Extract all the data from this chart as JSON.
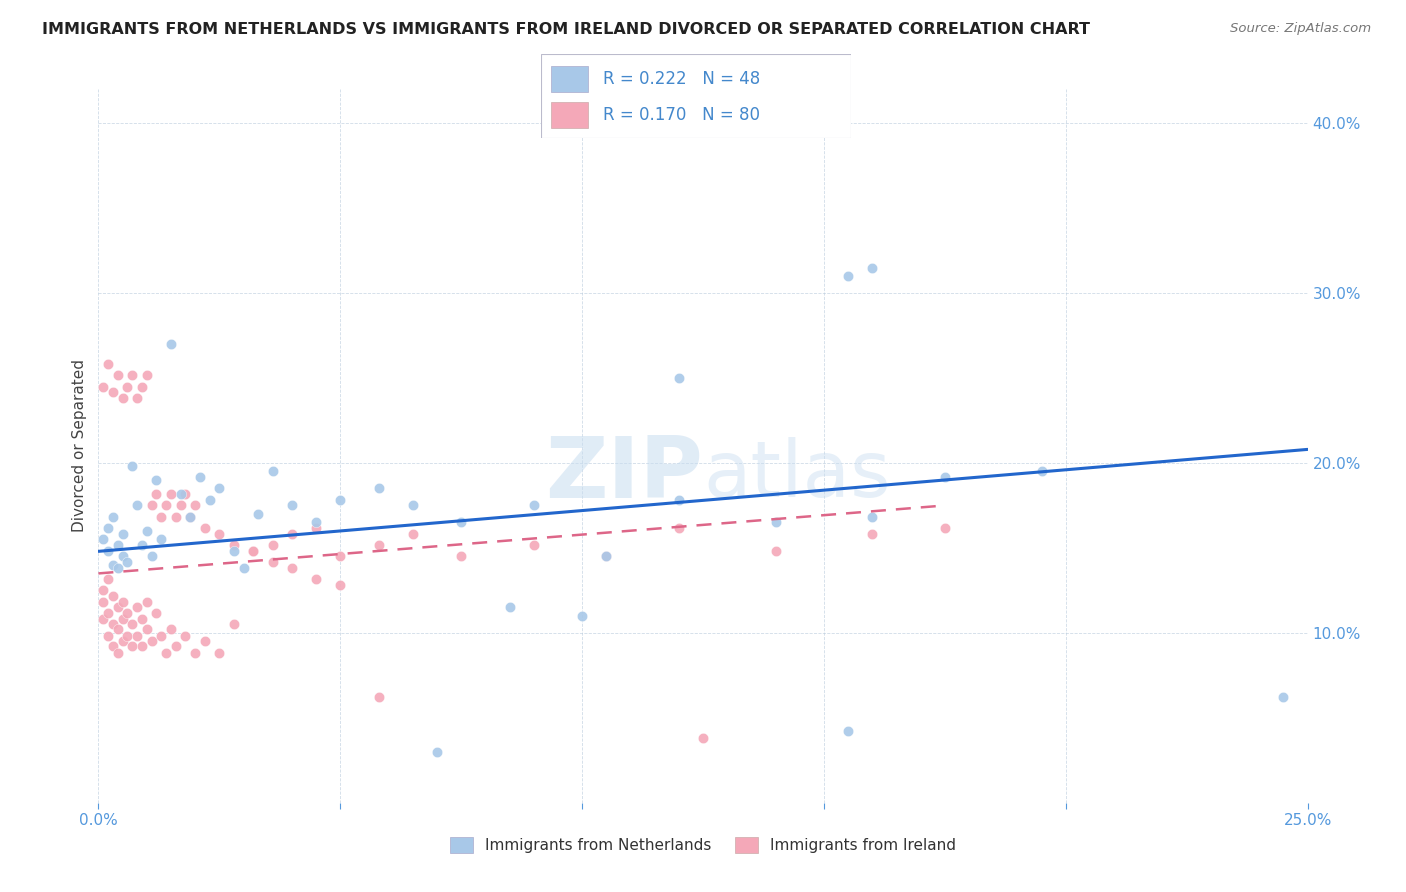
{
  "title": "IMMIGRANTS FROM NETHERLANDS VS IMMIGRANTS FROM IRELAND DIVORCED OR SEPARATED CORRELATION CHART",
  "source": "Source: ZipAtlas.com",
  "ylabel": "Divorced or Separated",
  "legend_label1": "Immigrants from Netherlands",
  "legend_label2": "Immigrants from Ireland",
  "legend_r1": "R = 0.222",
  "legend_n1": "N = 48",
  "legend_r2": "R = 0.170",
  "legend_n2": "N = 80",
  "color_blue": "#a8c8e8",
  "color_pink": "#f4a8b8",
  "line_color_blue": "#2266cc",
  "line_color_pink": "#dd6688",
  "xlim": [
    0.0,
    0.25
  ],
  "ylim": [
    0.0,
    0.42
  ],
  "nl_x": [
    0.001,
    0.002,
    0.002,
    0.003,
    0.003,
    0.004,
    0.004,
    0.005,
    0.005,
    0.006,
    0.007,
    0.008,
    0.009,
    0.01,
    0.011,
    0.012,
    0.013,
    0.015,
    0.017,
    0.019,
    0.021,
    0.023,
    0.025,
    0.028,
    0.03,
    0.033,
    0.036,
    0.04,
    0.045,
    0.05,
    0.058,
    0.065,
    0.075,
    0.09,
    0.105,
    0.12,
    0.14,
    0.16,
    0.175,
    0.195,
    0.155,
    0.16,
    0.12,
    0.245,
    0.155,
    0.1,
    0.085,
    0.07
  ],
  "nl_y": [
    0.155,
    0.148,
    0.162,
    0.14,
    0.168,
    0.138,
    0.152,
    0.145,
    0.158,
    0.142,
    0.198,
    0.175,
    0.152,
    0.16,
    0.145,
    0.19,
    0.155,
    0.27,
    0.182,
    0.168,
    0.192,
    0.178,
    0.185,
    0.148,
    0.138,
    0.17,
    0.195,
    0.175,
    0.165,
    0.178,
    0.185,
    0.175,
    0.165,
    0.175,
    0.145,
    0.178,
    0.165,
    0.168,
    0.192,
    0.195,
    0.31,
    0.315,
    0.25,
    0.062,
    0.042,
    0.11,
    0.115,
    0.03
  ],
  "ir_x": [
    0.001,
    0.001,
    0.001,
    0.002,
    0.002,
    0.002,
    0.003,
    0.003,
    0.003,
    0.004,
    0.004,
    0.004,
    0.005,
    0.005,
    0.005,
    0.006,
    0.006,
    0.007,
    0.007,
    0.008,
    0.008,
    0.009,
    0.009,
    0.01,
    0.01,
    0.011,
    0.012,
    0.013,
    0.014,
    0.015,
    0.016,
    0.018,
    0.02,
    0.022,
    0.025,
    0.028,
    0.032,
    0.036,
    0.04,
    0.045,
    0.05,
    0.058,
    0.065,
    0.075,
    0.09,
    0.105,
    0.12,
    0.14,
    0.16,
    0.175,
    0.001,
    0.002,
    0.003,
    0.004,
    0.005,
    0.006,
    0.007,
    0.008,
    0.009,
    0.01,
    0.011,
    0.012,
    0.013,
    0.014,
    0.015,
    0.016,
    0.017,
    0.018,
    0.019,
    0.02,
    0.022,
    0.025,
    0.028,
    0.032,
    0.036,
    0.04,
    0.045,
    0.05,
    0.058,
    0.125
  ],
  "ir_y": [
    0.125,
    0.118,
    0.108,
    0.132,
    0.112,
    0.098,
    0.122,
    0.105,
    0.092,
    0.115,
    0.102,
    0.088,
    0.118,
    0.108,
    0.095,
    0.112,
    0.098,
    0.105,
    0.092,
    0.115,
    0.098,
    0.108,
    0.092,
    0.118,
    0.102,
    0.095,
    0.112,
    0.098,
    0.088,
    0.102,
    0.092,
    0.098,
    0.088,
    0.095,
    0.088,
    0.105,
    0.148,
    0.152,
    0.158,
    0.162,
    0.145,
    0.152,
    0.158,
    0.145,
    0.152,
    0.145,
    0.162,
    0.148,
    0.158,
    0.162,
    0.245,
    0.258,
    0.242,
    0.252,
    0.238,
    0.245,
    0.252,
    0.238,
    0.245,
    0.252,
    0.175,
    0.182,
    0.168,
    0.175,
    0.182,
    0.168,
    0.175,
    0.182,
    0.168,
    0.175,
    0.162,
    0.158,
    0.152,
    0.148,
    0.142,
    0.138,
    0.132,
    0.128,
    0.062,
    0.038
  ],
  "nl_trend_x": [
    0.0,
    0.25
  ],
  "nl_trend_y": [
    0.148,
    0.208
  ],
  "ir_trend_x": [
    0.0,
    0.175
  ],
  "ir_trend_y": [
    0.135,
    0.175
  ],
  "watermark": "ZIPatlas",
  "watermark_zip": "ZIP",
  "watermark_atlas": "atlas"
}
